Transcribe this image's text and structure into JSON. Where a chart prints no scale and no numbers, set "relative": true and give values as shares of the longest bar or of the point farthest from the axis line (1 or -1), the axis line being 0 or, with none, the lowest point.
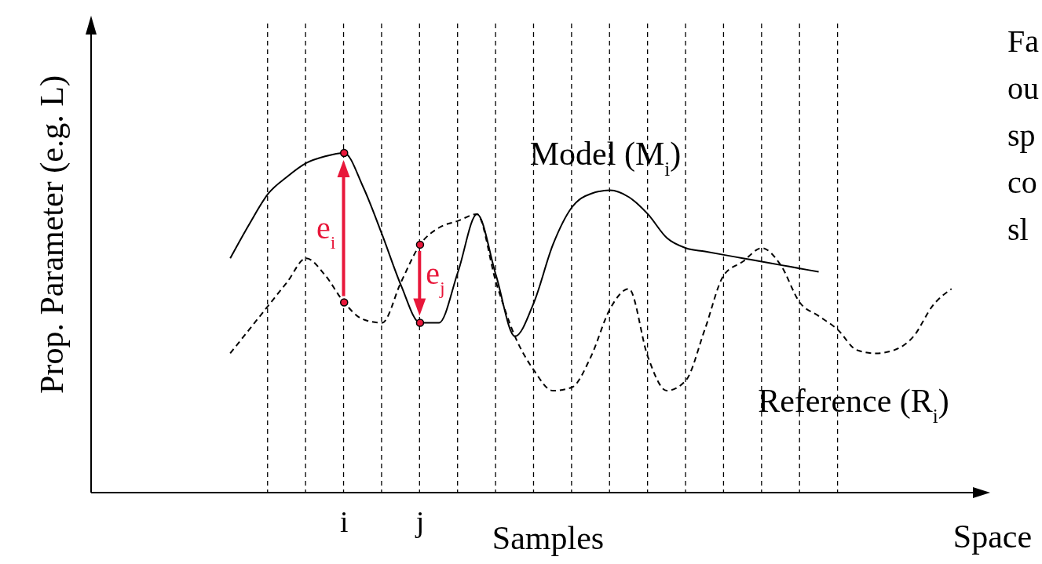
{
  "chart_data": {
    "type": "line",
    "relative": true,
    "xlabel": "Space",
    "ylabel": "Prop. Parameter (e.g. L)",
    "categories": [
      null,
      null,
      null,
      null,
      null,
      null,
      "i",
      null,
      null,
      null,
      "j",
      null,
      null,
      null,
      null,
      null,
      null,
      null,
      null,
      null,
      null,
      null,
      null,
      null,
      null,
      null,
      null,
      null,
      null,
      null,
      null,
      null,
      null,
      null,
      null,
      null,
      null,
      null,
      null
    ],
    "grid": "x",
    "legend": false,
    "marker": "none",
    "series": [
      {
        "name": "Model (M$_{i}$)",
        "color": "#000000",
        "line_style": "solid",
        "values": [
          0.69,
          0.79,
          0.88,
          0.93,
          0.97,
          0.99,
          1,
          0.9,
          0.76,
          0.61,
          0.5,
          0.5,
          0.65,
          0.82,
          0.64,
          0.46,
          0.56,
          0.73,
          0.84,
          0.88,
          0.89,
          0.87,
          0.82,
          0.75,
          0.72,
          0.71,
          0.7,
          0.69,
          0.68,
          0.67,
          0.66,
          0.65,
          null,
          null,
          null,
          null,
          null,
          null,
          null
        ]
      },
      {
        "name": "Reference (R$_{i}$)",
        "color": "#000000",
        "line_style": "dashed",
        "values": [
          0.41,
          0.48,
          0.55,
          0.62,
          0.69,
          0.64,
          0.56,
          0.51,
          0.5,
          0.62,
          0.73,
          0.78,
          0.8,
          0.82,
          0.62,
          0.46,
          0.36,
          0.3,
          0.31,
          0.4,
          0.54,
          0.6,
          0.4,
          0.3,
          0.33,
          0.48,
          0.64,
          0.68,
          0.72,
          0.67,
          0.56,
          0.52,
          0.48,
          0.42,
          0.41,
          0.42,
          0.46,
          0.55,
          0.6
        ]
      },
      {
        "type": "scatter",
        "color": "#e8173a",
        "marker": "circle",
        "x": [
          "i",
          "i",
          "j",
          "j"
        ],
        "values": [
          1,
          0.56,
          0.5,
          0.73
        ]
      }
    ],
    "annotations": [
      "e$_{i}$",
      "e$_{j}$",
      "Samples",
      "Fa",
      "ou",
      "sp",
      "co",
      "sl"
    ]
  }
}
